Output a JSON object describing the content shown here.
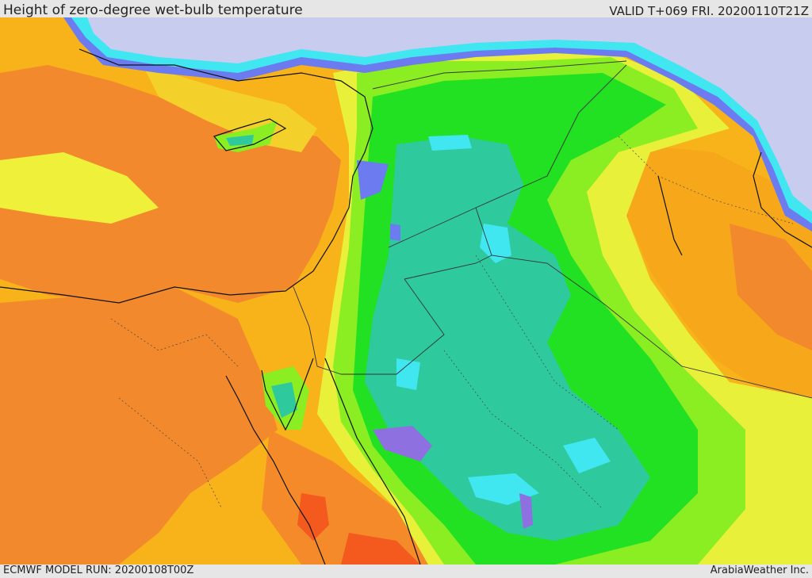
{
  "header": {
    "title": "Height of zero-degree wet-bulb temperature",
    "valid": "VALID T+069 FRI. 20200110T21Z"
  },
  "footer": {
    "model_run": "ECMWF MODEL RUN: 20200108T00Z",
    "credit": "ArabiaWeather Inc."
  },
  "map": {
    "colors": {
      "lavender": "#c8cdf0",
      "blue": "#6c7cf0",
      "purple": "#8f6fe0",
      "cyan": "#3fe6f0",
      "teal": "#30c9a0",
      "green": "#22e022",
      "lime": "#88ee22",
      "yellow": "#e8f03a",
      "orange_light": "#f8c21a",
      "orange": "#f6a81a",
      "orange_dark": "#f2862a",
      "red": "#f45a1e",
      "coast": "#111111",
      "border": "#333333"
    }
  }
}
